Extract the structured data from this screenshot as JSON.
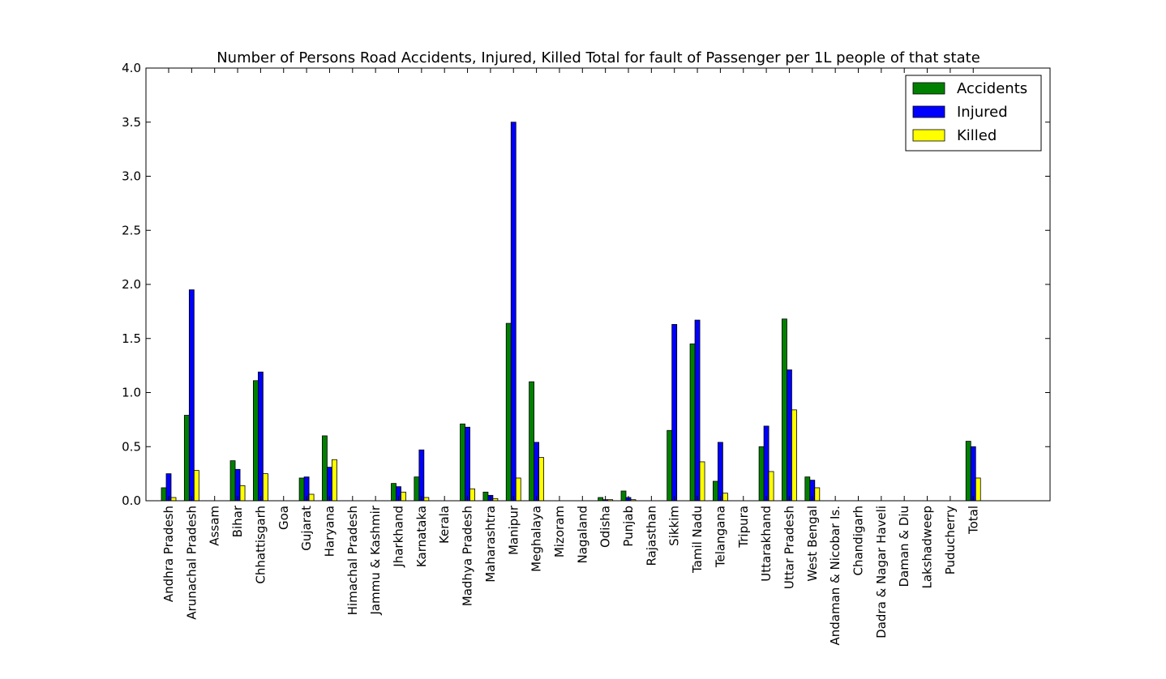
{
  "chart_data": {
    "type": "bar",
    "title": "Number of Persons Road Accidents, Injured, Killed Total for fault of Passenger per 1L people of that state",
    "xlabel": "",
    "ylabel": "",
    "ylim": [
      0,
      4.0
    ],
    "yticks": [
      "0.0",
      "0.5",
      "1.0",
      "1.5",
      "2.0",
      "2.5",
      "3.0",
      "3.5",
      "4.0"
    ],
    "grid": false,
    "legend_position": "top-right",
    "categories": [
      "Andhra Pradesh",
      "Arunachal Pradesh",
      "Assam",
      "Bihar",
      "Chhattisgarh",
      "Goa",
      "Gujarat",
      "Haryana",
      "Himachal Pradesh",
      "Jammu & Kashmir",
      "Jharkhand",
      "Karnataka",
      "Kerala",
      "Madhya Pradesh",
      "Maharashtra",
      "Manipur",
      "Meghalaya",
      "Mizoram",
      "Nagaland",
      "Odisha",
      "Punjab",
      "Rajasthan",
      "Sikkim",
      "Tamil Nadu",
      "Telangana",
      "Tripura",
      "Uttarakhand",
      "Uttar Pradesh",
      "West Bengal",
      "Andaman & Nicobar Is.",
      "Chandigarh",
      "Dadra & Nagar Haveli",
      "Daman & Diu",
      "Lakshadweep",
      "Puducherry",
      "Total"
    ],
    "series": [
      {
        "name": "Accidents",
        "color": "#008000",
        "values": [
          0.12,
          0.79,
          0.0,
          0.37,
          1.11,
          0.0,
          0.21,
          0.6,
          0.0,
          0.0,
          0.16,
          0.22,
          0.0,
          0.71,
          0.08,
          1.64,
          1.1,
          0.0,
          0.0,
          0.03,
          0.09,
          0.0,
          0.65,
          1.45,
          0.18,
          0.0,
          0.5,
          1.68,
          0.22,
          0.0,
          0.0,
          0.0,
          0.0,
          0.0,
          0.0,
          0.55
        ]
      },
      {
        "name": "Injured",
        "color": "#0000ff",
        "values": [
          0.25,
          1.95,
          0.0,
          0.29,
          1.19,
          0.0,
          0.22,
          0.31,
          0.0,
          0.0,
          0.13,
          0.47,
          0.0,
          0.68,
          0.05,
          3.5,
          0.54,
          0.0,
          0.0,
          0.01,
          0.03,
          0.0,
          1.63,
          1.67,
          0.54,
          0.0,
          0.69,
          1.21,
          0.19,
          0.0,
          0.0,
          0.0,
          0.0,
          0.0,
          0.0,
          0.5
        ]
      },
      {
        "name": "Killed",
        "color": "#ffff00",
        "values": [
          0.03,
          0.28,
          0.0,
          0.14,
          0.25,
          0.0,
          0.06,
          0.38,
          0.0,
          0.0,
          0.08,
          0.03,
          0.0,
          0.11,
          0.02,
          0.21,
          0.4,
          0.0,
          0.0,
          0.01,
          0.01,
          0.0,
          0.0,
          0.36,
          0.07,
          0.0,
          0.27,
          0.84,
          0.12,
          0.0,
          0.0,
          0.0,
          0.0,
          0.0,
          0.0,
          0.21
        ]
      }
    ]
  }
}
